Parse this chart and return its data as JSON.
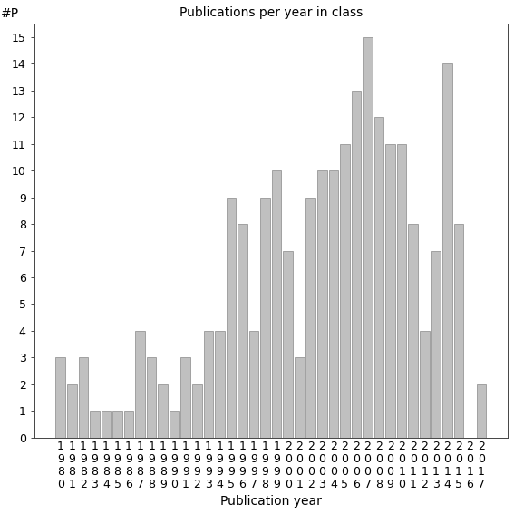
{
  "title": "Publications per year in class",
  "xlabel": "Publication year",
  "ylabel": "#P",
  "years": [
    1980,
    1981,
    1982,
    1983,
    1984,
    1985,
    1986,
    1987,
    1988,
    1989,
    1990,
    1991,
    1992,
    1993,
    1994,
    1995,
    1996,
    1997,
    1998,
    1999,
    2000,
    2001,
    2002,
    2003,
    2004,
    2005,
    2006,
    2007,
    2008,
    2009,
    2010,
    2011,
    2012,
    2013,
    2014,
    2015,
    2016,
    2017
  ],
  "values": [
    3,
    2,
    3,
    1,
    1,
    1,
    1,
    4,
    3,
    2,
    1,
    3,
    2,
    4,
    4,
    9,
    8,
    4,
    9,
    10,
    7,
    3,
    9,
    10,
    10,
    11,
    13,
    15,
    12,
    11,
    11,
    8,
    4,
    7,
    14,
    8,
    0,
    2
  ],
  "bar_color": "#c0c0c0",
  "bar_edge_color": "#888888",
  "ylim": [
    0,
    15.5
  ],
  "yticks": [
    0,
    1,
    2,
    3,
    4,
    5,
    6,
    7,
    8,
    9,
    10,
    11,
    12,
    13,
    14,
    15
  ],
  "figsize": [
    5.67,
    5.67
  ],
  "dpi": 100,
  "title_fontsize": 10,
  "axis_label_fontsize": 10,
  "tick_fontsize": 9
}
